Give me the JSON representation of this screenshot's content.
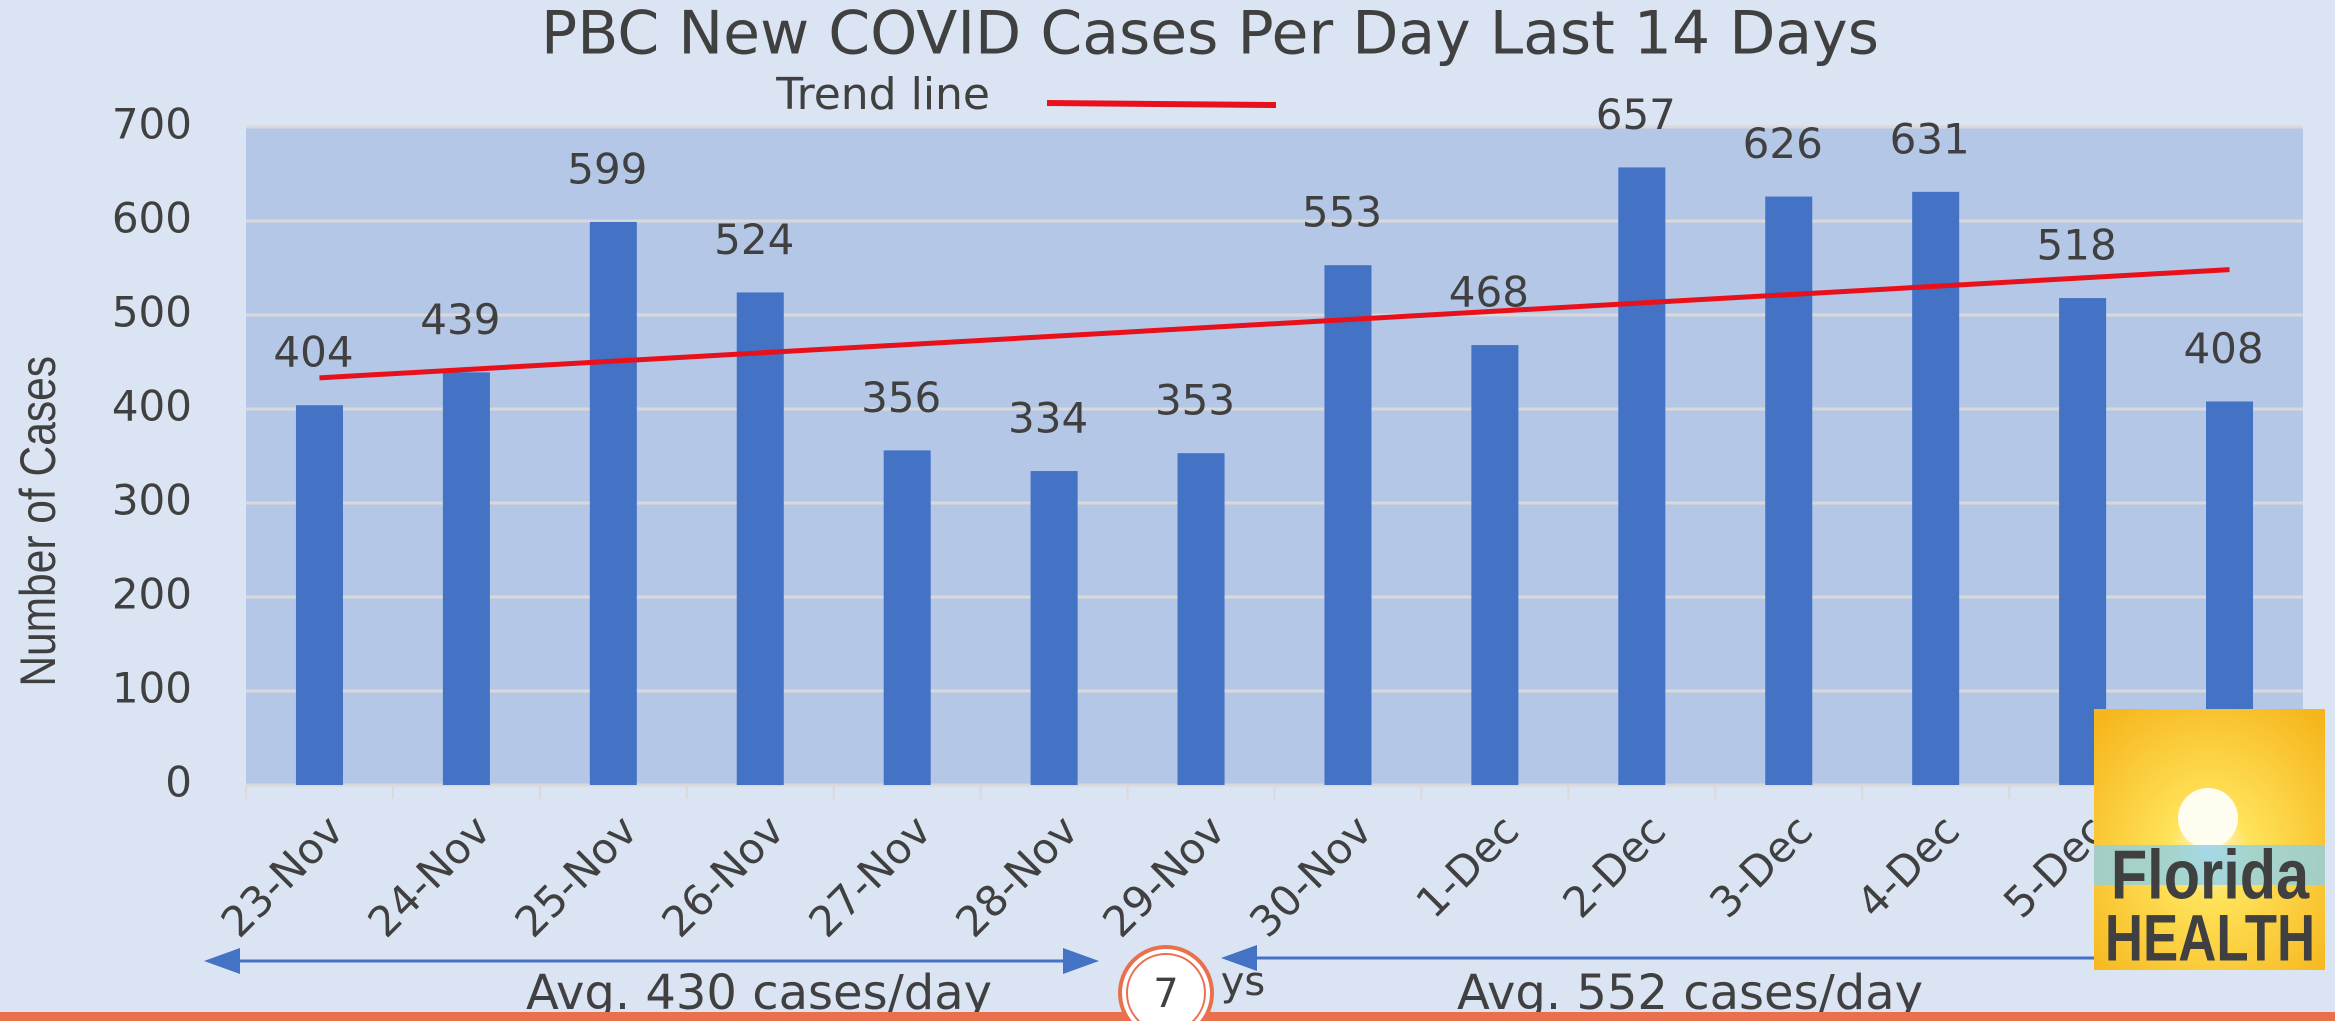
{
  "chart_data": {
    "type": "bar",
    "title": "PBC New COVID Cases Per Day Last 14 Days",
    "y_label": "Number of Cases",
    "categories": [
      "23-Nov",
      "24-Nov",
      "25-Nov",
      "26-Nov",
      "27-Nov",
      "28-Nov",
      "29-Nov",
      "30-Nov",
      "1-Dec",
      "2-Dec",
      "3-Dec",
      "4-Dec",
      "5-Dec",
      null
    ],
    "values": [
      404,
      439,
      599,
      524,
      356,
      334,
      353,
      553,
      468,
      657,
      626,
      631,
      518,
      408
    ],
    "color": "#4472c4",
    "ylim": [
      0,
      700
    ],
    "yticks": [
      0,
      100,
      200,
      300,
      400,
      500,
      600,
      700
    ],
    "grid": true,
    "trend_line": {
      "name": "Trend line",
      "color": "#e8101a"
    },
    "annotations": [
      "Avg. 430 cases/day",
      "ys",
      "Avg. 552 cases/day"
    ]
  },
  "page_number": "7",
  "logo": {
    "line1": "Florida",
    "line2": "HEALTH"
  }
}
